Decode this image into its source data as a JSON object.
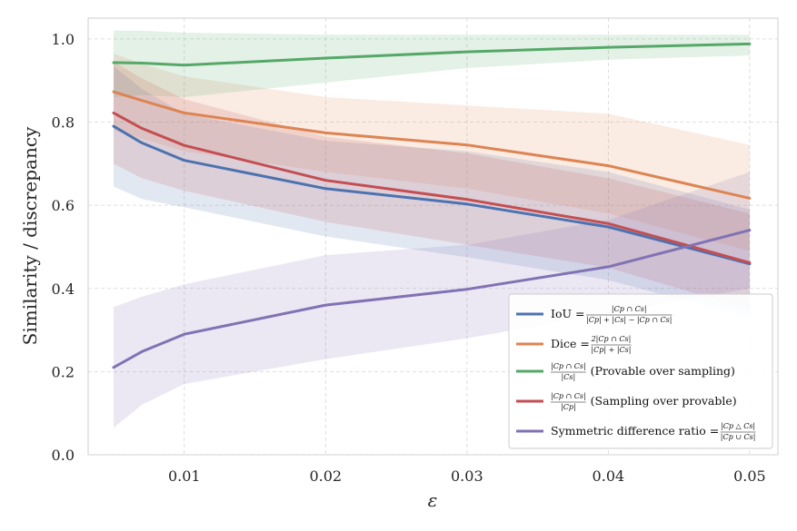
{
  "chart_data": {
    "type": "line",
    "xlabel": "ε",
    "ylabel": "Similarity / discrepancy",
    "xlim": [
      0.0032,
      0.052
    ],
    "ylim": [
      0.0,
      1.05
    ],
    "xticks": [
      0.01,
      0.02,
      0.03,
      0.04,
      0.05
    ],
    "xtick_labels": [
      "0.01",
      "0.02",
      "0.03",
      "0.04",
      "0.05"
    ],
    "yticks": [
      0.0,
      0.2,
      0.4,
      0.6,
      0.8,
      1.0
    ],
    "ytick_labels": [
      "0.0",
      "0.2",
      "0.4",
      "0.6",
      "0.8",
      "1.0"
    ],
    "grid": true,
    "legend_position": "lower-right",
    "x": [
      0.005,
      0.007,
      0.01,
      0.02,
      0.03,
      0.04,
      0.05
    ],
    "series": [
      {
        "name": "IoU",
        "formula_num": "|Cp ∩ Cs|",
        "formula_den": "|Cp| + |Cs| − |Cp ∩ Cs|",
        "color": "#4c72b0",
        "values": [
          0.79,
          0.75,
          0.708,
          0.64,
          0.603,
          0.548,
          0.459
        ],
        "lower": [
          0.645,
          0.615,
          0.595,
          0.525,
          0.475,
          0.42,
          0.33
        ],
        "upper": [
          0.935,
          0.88,
          0.82,
          0.755,
          0.73,
          0.68,
          0.59
        ]
      },
      {
        "name": "Dice",
        "formula_num": "2|Cp ∩ Cs|",
        "formula_den": "|Cp| + |Cs|",
        "color": "#dd8452",
        "values": [
          0.873,
          0.852,
          0.822,
          0.774,
          0.745,
          0.695,
          0.617
        ],
        "lower": [
          0.78,
          0.76,
          0.73,
          0.68,
          0.64,
          0.58,
          0.49
        ],
        "upper": [
          0.965,
          0.94,
          0.91,
          0.86,
          0.84,
          0.82,
          0.745
        ]
      },
      {
        "name": "(Provable over sampling)",
        "formula_num": "|Cp ∩ Cs|",
        "formula_den": "|Cs|",
        "color": "#55a868",
        "values": [
          0.943,
          0.942,
          0.937,
          0.954,
          0.969,
          0.98,
          0.988
        ],
        "lower": [
          0.86,
          0.865,
          0.86,
          0.895,
          0.93,
          0.95,
          0.96
        ],
        "upper": [
          1.02,
          1.02,
          1.015,
          1.01,
          1.01,
          1.01,
          1.01
        ]
      },
      {
        "name": "(Sampling over provable)",
        "formula_num": "|Cp ∩ Cs|",
        "formula_den": "|Cp|",
        "color": "#c44e52",
        "values": [
          0.822,
          0.785,
          0.744,
          0.66,
          0.614,
          0.556,
          0.462
        ],
        "lower": [
          0.7,
          0.665,
          0.635,
          0.56,
          0.505,
          0.45,
          0.35
        ],
        "upper": [
          0.945,
          0.905,
          0.855,
          0.765,
          0.725,
          0.665,
          0.58
        ]
      },
      {
        "name": "Symmetric difference ratio",
        "formula_num": "|Cp △ Cs|",
        "formula_den": "|Cp ∪ Cs|",
        "color": "#8172b3",
        "values": [
          0.21,
          0.248,
          0.29,
          0.36,
          0.398,
          0.452,
          0.54
        ],
        "lower": [
          0.065,
          0.12,
          0.17,
          0.23,
          0.28,
          0.34,
          0.4
        ],
        "upper": [
          0.355,
          0.38,
          0.41,
          0.48,
          0.505,
          0.565,
          0.68
        ]
      }
    ]
  }
}
